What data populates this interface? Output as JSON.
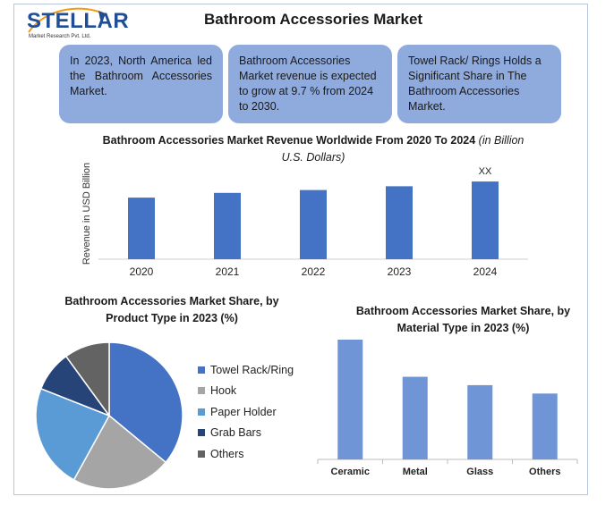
{
  "logo": {
    "word": "STELLAR",
    "tagline": "Market Research Pvt. Ltd."
  },
  "title": "Bathroom Accessories Market",
  "callouts": [
    "In 2023, North America led the Bathroom Accessories Market.",
    "Bathroom Accessories Market revenue is expected to grow at 9.7 % from 2024 to 2030.",
    "Towel Rack/ Rings Holds a Significant Share in The Bathroom Accessories Market."
  ],
  "colors": {
    "callout": "#8faadc",
    "bar_dark": "#4472c4",
    "bar_light": "#6f95d6"
  },
  "chart_data": [
    {
      "type": "bar",
      "title": "Bathroom Accessories Market Revenue Worldwide From 2020 To 2024",
      "title_unit": "(in Billion U.S. Dollars)",
      "ylabel": "Revenue in USD Billion",
      "categories": [
        "2020",
        "2021",
        "2022",
        "2023",
        "2024"
      ],
      "values": [
        65,
        70,
        73,
        77,
        82
      ],
      "annotations": [
        {
          "category": "2024",
          "text": "XX"
        }
      ],
      "ylim": [
        0,
        100
      ],
      "grid": false
    },
    {
      "type": "pie",
      "title": "Bathroom Accessories Market Share, by Product Type in 2023 (%)",
      "labels": [
        "Towel Rack/Ring",
        "Hook",
        "Paper Holder",
        "Grab Bars",
        "Others"
      ],
      "values": [
        36,
        22,
        23,
        9,
        10
      ],
      "colors": [
        "#4472c4",
        "#a5a5a5",
        "#5b9bd5",
        "#264478",
        "#636363"
      ],
      "legend": "right"
    },
    {
      "type": "bar",
      "title": "Bathroom Accessories Market Share, by Material Type in 2023 (%)",
      "categories": [
        "Ceramic",
        "Metal",
        "Glass",
        "Others"
      ],
      "values": [
        100,
        69,
        62,
        55
      ],
      "ylim": [
        0,
        100
      ],
      "grid": false
    }
  ]
}
